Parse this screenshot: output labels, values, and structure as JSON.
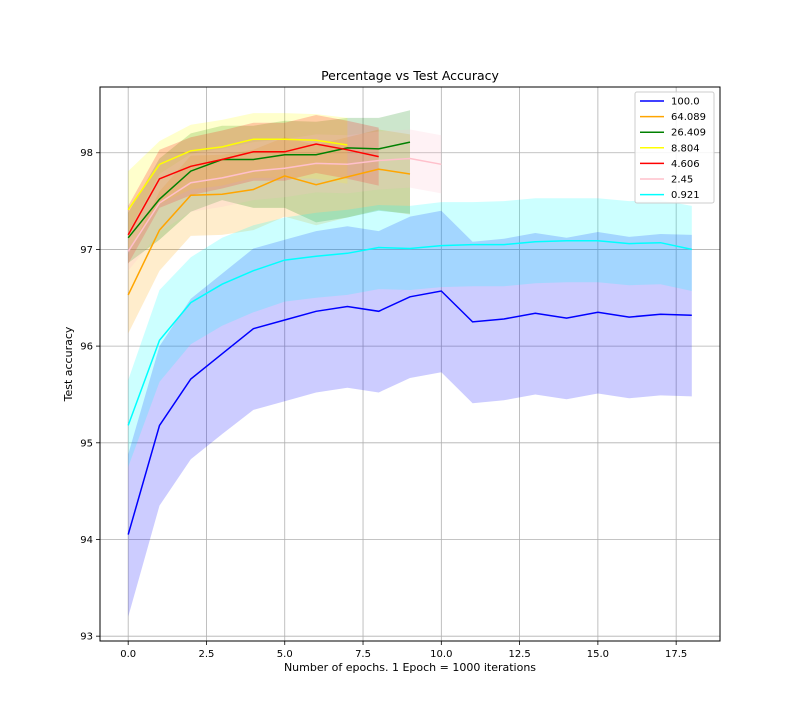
{
  "chart_data": {
    "type": "line",
    "title": "Percentage vs Test Accuracy",
    "xlabel": "Number of epochs. 1 Epoch = 1000 iterations",
    "ylabel": "Test accuracy",
    "xlim": [
      -0.9,
      18.9
    ],
    "ylim": [
      92.95,
      98.68
    ],
    "xticks": [
      0.0,
      2.5,
      5.0,
      7.5,
      10.0,
      12.5,
      15.0,
      17.5
    ],
    "xtick_labels": [
      "0.0",
      "2.5",
      "5.0",
      "7.5",
      "10.0",
      "12.5",
      "15.0",
      "17.5"
    ],
    "yticks": [
      93,
      94,
      95,
      96,
      97,
      98
    ],
    "ytick_labels": [
      "93",
      "94",
      "95",
      "96",
      "97",
      "98"
    ],
    "grid": true,
    "legend_position": "top-right",
    "series": [
      {
        "name": "100.0",
        "color": "#0000ff",
        "x": [
          0,
          1,
          2,
          3,
          4,
          5,
          6,
          7,
          8,
          9,
          10,
          11,
          12,
          13,
          14,
          15,
          16,
          17,
          18
        ],
        "values": [
          94.05,
          95.18,
          95.66,
          95.92,
          96.18,
          96.27,
          96.36,
          96.41,
          96.36,
          96.51,
          96.57,
          96.25,
          96.28,
          96.34,
          96.29,
          96.35,
          96.3,
          96.33,
          96.32
        ],
        "lower": [
          93.2,
          94.35,
          94.83,
          95.09,
          95.34,
          95.43,
          95.52,
          95.57,
          95.52,
          95.67,
          95.73,
          95.41,
          95.44,
          95.5,
          95.45,
          95.51,
          95.46,
          95.49,
          95.48
        ],
        "upper": [
          94.88,
          96.0,
          96.49,
          96.75,
          97.01,
          97.1,
          97.19,
          97.24,
          97.19,
          97.34,
          97.4,
          97.08,
          97.11,
          97.17,
          97.12,
          97.18,
          97.13,
          97.16,
          97.15
        ]
      },
      {
        "name": "64.089",
        "color": "#ffa500",
        "x": [
          0,
          1,
          2,
          3,
          4,
          5,
          6,
          7,
          8,
          9
        ],
        "values": [
          96.53,
          97.2,
          97.56,
          97.57,
          97.62,
          97.76,
          97.67,
          97.75,
          97.83,
          97.78
        ],
        "lower": [
          96.13,
          96.78,
          97.14,
          97.15,
          97.2,
          97.34,
          97.25,
          97.33,
          97.41,
          97.36
        ],
        "upper": [
          96.95,
          97.6,
          97.97,
          97.98,
          98.03,
          98.16,
          98.08,
          98.16,
          98.24,
          98.19
        ]
      },
      {
        "name": "26.409",
        "color": "#008000",
        "x": [
          0,
          1,
          2,
          3,
          4,
          5,
          6,
          7,
          8,
          9
        ],
        "values": [
          97.12,
          97.52,
          97.81,
          97.93,
          97.93,
          97.98,
          97.98,
          98.05,
          98.04,
          98.11
        ],
        "lower": [
          96.86,
          97.1,
          97.39,
          97.51,
          97.43,
          97.43,
          97.28,
          97.33,
          97.4,
          97.37
        ],
        "upper": [
          97.38,
          97.94,
          98.2,
          98.28,
          98.28,
          98.33,
          98.32,
          98.36,
          98.36,
          98.44
        ]
      },
      {
        "name": "8.804",
        "color": "#ffff00",
        "x": [
          0,
          1,
          2,
          3,
          4,
          5,
          6,
          7
        ],
        "values": [
          97.41,
          97.88,
          98.02,
          98.06,
          98.14,
          98.14,
          98.13,
          98.08
        ],
        "lower": [
          97.0,
          97.47,
          97.62,
          97.66,
          97.74,
          97.74,
          97.73,
          97.68
        ],
        "upper": [
          97.81,
          98.12,
          98.29,
          98.34,
          98.41,
          98.41,
          98.4,
          98.36
        ]
      },
      {
        "name": "4.606",
        "color": "#ff0000",
        "x": [
          0,
          1,
          2,
          3,
          4,
          5,
          6,
          7,
          8
        ],
        "values": [
          97.15,
          97.73,
          97.86,
          97.93,
          98.01,
          98.01,
          98.09,
          98.03,
          97.96
        ],
        "lower": [
          96.85,
          97.43,
          97.56,
          97.63,
          97.71,
          97.71,
          97.79,
          97.73,
          97.66
        ],
        "upper": [
          97.45,
          98.03,
          98.16,
          98.23,
          98.31,
          98.31,
          98.39,
          98.33,
          98.26
        ]
      },
      {
        "name": "2.45",
        "color": "#ffc0cb",
        "x": [
          0,
          1,
          2,
          3,
          4,
          5,
          6,
          7,
          8,
          9,
          10
        ],
        "values": [
          96.98,
          97.48,
          97.69,
          97.74,
          97.81,
          97.84,
          97.89,
          97.88,
          97.92,
          97.94,
          97.88
        ],
        "lower": [
          96.78,
          97.18,
          97.39,
          97.44,
          97.51,
          97.54,
          97.59,
          97.58,
          97.62,
          97.64,
          97.58
        ],
        "upper": [
          97.18,
          97.78,
          97.99,
          98.04,
          98.11,
          98.14,
          98.19,
          98.18,
          98.22,
          98.24,
          98.18
        ]
      },
      {
        "name": "0.921",
        "color": "#00ffff",
        "x": [
          0,
          1,
          2,
          3,
          4,
          5,
          6,
          7,
          8,
          9,
          10,
          11,
          12,
          13,
          14,
          15,
          16,
          17,
          18
        ],
        "values": [
          95.18,
          96.06,
          96.45,
          96.64,
          96.78,
          96.89,
          96.93,
          96.96,
          97.02,
          97.01,
          97.04,
          97.05,
          97.05,
          97.08,
          97.09,
          97.09,
          97.06,
          97.07,
          97.0
        ],
        "lower": [
          94.75,
          95.63,
          96.02,
          96.21,
          96.35,
          96.46,
          96.5,
          96.53,
          96.59,
          96.58,
          96.61,
          96.62,
          96.62,
          96.65,
          96.66,
          96.66,
          96.63,
          96.64,
          96.57
        ],
        "upper": [
          95.65,
          96.58,
          96.92,
          97.12,
          97.25,
          97.33,
          97.38,
          97.41,
          97.46,
          97.45,
          97.49,
          97.49,
          97.5,
          97.53,
          97.53,
          97.53,
          97.5,
          97.51,
          97.45
        ]
      }
    ]
  }
}
